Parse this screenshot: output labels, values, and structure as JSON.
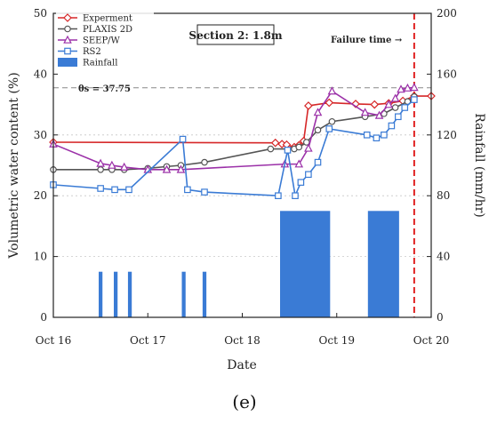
{
  "caption": "(e)",
  "chart_data": {
    "type": "line",
    "title": "",
    "section_label": "Section 2: 1.8m",
    "xlabel": "Date",
    "ylabel": "Volumetric water content (%)",
    "ylabel_right": "Rainfall (mm/hr)",
    "xlim": [
      0,
      4
    ],
    "ylim": [
      0,
      50
    ],
    "ylim_right": [
      0,
      200
    ],
    "x_ticks": [
      {
        "value": 0,
        "label": "Oct 16"
      },
      {
        "value": 1,
        "label": "Oct 17"
      },
      {
        "value": 2,
        "label": "Oct 18"
      },
      {
        "value": 3,
        "label": "Oct 19"
      },
      {
        "value": 4,
        "label": "Oct 20"
      }
    ],
    "y_ticks": [
      0,
      10,
      20,
      30,
      40,
      50
    ],
    "y_ticks_right": [
      0,
      40,
      80,
      120,
      160,
      200
    ],
    "grid": false,
    "legend_position": "top-left",
    "reference_line": {
      "value": 37.75,
      "label": "θs = 37.75"
    },
    "failure_line": {
      "x": 3.82,
      "label": "Failure time →",
      "color": "#e02020"
    },
    "series": [
      {
        "name": "Experment",
        "color": "#d62728",
        "marker": "diamond",
        "x": [
          0,
          2.35,
          2.42,
          2.47,
          2.55,
          2.6,
          2.65,
          2.7,
          2.92,
          3.2,
          3.4,
          3.55,
          3.7,
          3.82,
          4.0
        ],
        "y": [
          28.8,
          28.7,
          28.5,
          28.4,
          28.0,
          28.3,
          29.0,
          34.8,
          35.3,
          35.1,
          35.0,
          35.2,
          35.6,
          36.4,
          36.4
        ]
      },
      {
        "name": "PLAXIS 2D",
        "color": "#555555",
        "marker": "circle",
        "x": [
          0,
          0.5,
          0.62,
          0.75,
          1.0,
          1.2,
          1.35,
          1.6,
          2.3,
          2.55,
          2.6,
          2.68,
          2.8,
          2.95,
          3.3,
          3.5,
          3.62,
          3.75,
          3.82
        ],
        "y": [
          24.3,
          24.3,
          24.3,
          24.3,
          24.5,
          24.8,
          25.0,
          25.5,
          27.7,
          27.7,
          28.0,
          28.8,
          30.8,
          32.2,
          33.0,
          33.5,
          34.5,
          35.5,
          36.3
        ]
      },
      {
        "name": "SEEP/W",
        "color": "#9b30a8",
        "marker": "triangle",
        "x": [
          0,
          0.5,
          0.62,
          0.75,
          1.0,
          1.2,
          1.35,
          2.45,
          2.6,
          2.7,
          2.8,
          2.95,
          3.3,
          3.45,
          3.55,
          3.62,
          3.68,
          3.75,
          3.82
        ],
        "y": [
          28.5,
          25.3,
          25.0,
          24.7,
          24.3,
          24.3,
          24.3,
          25.2,
          25.2,
          27.8,
          33.7,
          37.2,
          33.7,
          33.2,
          35.0,
          36.0,
          37.5,
          37.7,
          37.8
        ]
      },
      {
        "name": "RS2",
        "color": "#3a7bd5",
        "marker": "square",
        "x": [
          0,
          0.5,
          0.65,
          0.8,
          1.37,
          1.42,
          1.6,
          2.38,
          2.48,
          2.56,
          2.62,
          2.7,
          2.8,
          2.92,
          3.32,
          3.42,
          3.5,
          3.58,
          3.65,
          3.72,
          3.82
        ],
        "y": [
          21.8,
          21.2,
          21.0,
          21.0,
          29.3,
          21.0,
          20.6,
          20.0,
          27.5,
          20.0,
          22.2,
          23.5,
          25.5,
          31.0,
          30.0,
          29.5,
          30.0,
          31.5,
          33.0,
          34.5,
          35.8
        ]
      }
    ],
    "rainfall": {
      "name": "Rainfall",
      "color": "#3a7bd5",
      "axis": "right",
      "bars": [
        {
          "x0": 0.48,
          "x1": 0.52,
          "value": 30
        },
        {
          "x0": 0.64,
          "x1": 0.68,
          "value": 30
        },
        {
          "x0": 0.79,
          "x1": 0.83,
          "value": 30
        },
        {
          "x0": 1.36,
          "x1": 1.4,
          "value": 30
        },
        {
          "x0": 1.58,
          "x1": 1.62,
          "value": 30
        },
        {
          "x0": 2.4,
          "x1": 2.93,
          "value": 70
        },
        {
          "x0": 3.33,
          "x1": 3.66,
          "value": 70
        }
      ]
    }
  }
}
